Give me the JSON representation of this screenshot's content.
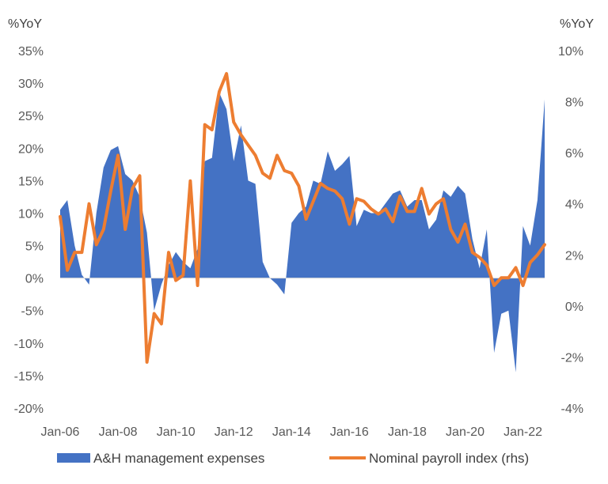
{
  "chart_data": {
    "type": "area+line",
    "title": "",
    "xlabel": "",
    "left_axis_unit": "%YoY",
    "right_axis_unit": "%YoY",
    "ylim_left": [
      -20,
      35
    ],
    "ylim_right": [
      -4,
      10
    ],
    "y_ticks_left": [
      "-20%",
      "-15%",
      "-10%",
      "-5%",
      "0%",
      "5%",
      "10%",
      "15%",
      "20%",
      "25%",
      "30%",
      "35%"
    ],
    "y_ticks_right": [
      "-4%",
      "-2%",
      "0%",
      "2%",
      "4%",
      "6%",
      "8%",
      "10%"
    ],
    "x_ticks": [
      "Jan-06",
      "Jan-08",
      "Jan-10",
      "Jan-12",
      "Jan-14",
      "Jan-16",
      "Jan-18",
      "Jan-20",
      "Jan-22"
    ],
    "grid": false,
    "legend_position": "bottom",
    "series": [
      {
        "name": "A&H management expenses",
        "type": "area",
        "axis": "left",
        "color": "#4472C4",
        "x": [
          "Jan-06",
          "Apr-06",
          "Jul-06",
          "Oct-06",
          "Jan-07",
          "Apr-07",
          "Jul-07",
          "Oct-07",
          "Jan-08",
          "Apr-08",
          "Jul-08",
          "Oct-08",
          "Jan-09",
          "Apr-09",
          "Jul-09",
          "Oct-09",
          "Jan-10",
          "Apr-10",
          "Jul-10",
          "Oct-10",
          "Jan-11",
          "Apr-11",
          "Jul-11",
          "Oct-11",
          "Jan-12",
          "Apr-12",
          "Jul-12",
          "Oct-12",
          "Jan-13",
          "Apr-13",
          "Jul-13",
          "Oct-13",
          "Jan-14",
          "Apr-14",
          "Jul-14",
          "Oct-14",
          "Jan-15",
          "Apr-15",
          "Jul-15",
          "Oct-15",
          "Jan-16",
          "Apr-16",
          "Jul-16",
          "Oct-16",
          "Jan-17",
          "Apr-17",
          "Jul-17",
          "Oct-17",
          "Jan-18",
          "Apr-18",
          "Jul-18",
          "Oct-18",
          "Jan-19",
          "Apr-19",
          "Jul-19",
          "Oct-19",
          "Jan-20",
          "Apr-20",
          "Jul-20",
          "Oct-20",
          "Jan-21",
          "Apr-21",
          "Jul-21",
          "Oct-21",
          "Jan-22",
          "Apr-22",
          "Jul-22",
          "Oct-22"
        ],
        "values": [
          10.5,
          12,
          5,
          0.5,
          -1,
          10,
          17,
          19.7,
          20.3,
          16,
          15,
          12.5,
          7,
          -5,
          -1,
          2,
          4,
          2.5,
          1.5,
          4.5,
          18,
          18.5,
          28.5,
          26,
          18,
          23.5,
          15,
          14.5,
          2.5,
          0,
          -1,
          -2.5,
          8.5,
          10,
          11,
          15,
          14.5,
          19.5,
          16.5,
          17.5,
          18.8,
          8,
          10.5,
          10,
          10,
          11.5,
          13,
          13.5,
          11,
          12,
          12,
          7.5,
          9,
          13.5,
          12.5,
          14.2,
          13,
          6,
          1.5,
          7.5,
          -11.5,
          -5.5,
          -5,
          -14.5,
          8,
          5,
          12,
          27.5
        ]
      },
      {
        "name": "Nominal payroll index (rhs)",
        "type": "line",
        "axis": "right",
        "color": "#ED7D31",
        "x": [
          "Jan-06",
          "Apr-06",
          "Jul-06",
          "Oct-06",
          "Jan-07",
          "Apr-07",
          "Jul-07",
          "Oct-07",
          "Jan-08",
          "Apr-08",
          "Jul-08",
          "Oct-08",
          "Jan-09",
          "Apr-09",
          "Jul-09",
          "Oct-09",
          "Jan-10",
          "Apr-10",
          "Jul-10",
          "Oct-10",
          "Jan-11",
          "Apr-11",
          "Jul-11",
          "Oct-11",
          "Jan-12",
          "Apr-12",
          "Jul-12",
          "Oct-12",
          "Jan-13",
          "Apr-13",
          "Jul-13",
          "Oct-13",
          "Jan-14",
          "Apr-14",
          "Jul-14",
          "Oct-14",
          "Jan-15",
          "Apr-15",
          "Jul-15",
          "Oct-15",
          "Jan-16",
          "Apr-16",
          "Jul-16",
          "Oct-16",
          "Jan-17",
          "Apr-17",
          "Jul-17",
          "Oct-17",
          "Jan-18",
          "Apr-18",
          "Jul-18",
          "Oct-18",
          "Jan-19",
          "Apr-19",
          "Jul-19",
          "Oct-19",
          "Jan-20",
          "Apr-20",
          "Jul-20",
          "Oct-20",
          "Jan-21",
          "Apr-21",
          "Jul-21",
          "Oct-21",
          "Jan-22",
          "Apr-22",
          "Jul-22",
          "Oct-22"
        ],
        "values": [
          3.5,
          1.4,
          2.1,
          2.1,
          4,
          2.4,
          3,
          4.5,
          5.9,
          3,
          4.6,
          5.1,
          -2.2,
          -0.3,
          -0.7,
          2.1,
          1,
          1.2,
          4.9,
          0.8,
          7.1,
          6.9,
          8.4,
          9.1,
          7.2,
          6.7,
          6.3,
          5.9,
          5.2,
          5,
          5.9,
          5.3,
          5.2,
          4.7,
          3.4,
          4.1,
          4.8,
          4.6,
          4.5,
          4.2,
          3.2,
          4.2,
          4.1,
          3.8,
          3.6,
          3.8,
          3.3,
          4.3,
          3.7,
          3.7,
          4.6,
          3.6,
          4,
          4.2,
          3,
          2.5,
          3.2,
          2.1,
          1.9,
          1.6,
          0.8,
          1.1,
          1.1,
          1.5,
          0.8,
          1.7,
          2,
          2.4
        ]
      }
    ]
  }
}
